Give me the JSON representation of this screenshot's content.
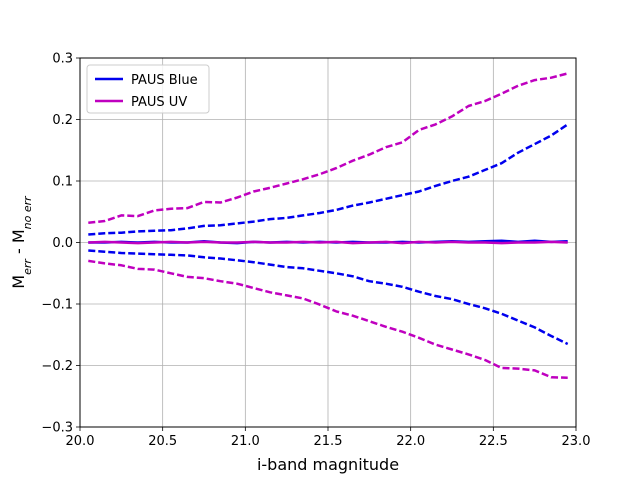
{
  "chart_data": {
    "type": "line",
    "title": "",
    "xlabel": "i-band magnitude",
    "ylabel": {
      "base": "M",
      "sub1": "err",
      "mid": " - M",
      "sub2": "no err"
    },
    "xlim": [
      20.0,
      23.0
    ],
    "ylim": [
      -0.3,
      0.3
    ],
    "xticks": [
      20.0,
      20.5,
      21.0,
      21.5,
      22.0,
      22.5,
      23.0
    ],
    "xtick_labels": [
      "20.0",
      "20.5",
      "21.0",
      "21.5",
      "22.0",
      "22.5",
      "23.0"
    ],
    "yticks": [
      -0.3,
      -0.2,
      -0.1,
      0.0,
      0.1,
      0.2,
      0.3
    ],
    "ytick_labels": [
      "−0.3",
      "−0.2",
      "−0.1",
      "0.0",
      "0.1",
      "0.2",
      "0.3"
    ],
    "grid": true,
    "legend_position": "top-left",
    "legend": [
      {
        "name": "PAUS Blue",
        "color": "#0000ee"
      },
      {
        "name": "PAUS UV",
        "color": "#bf00bf"
      }
    ],
    "x": [
      20.05,
      20.15,
      20.25,
      20.35,
      20.45,
      20.55,
      20.65,
      20.75,
      20.85,
      20.95,
      21.05,
      21.15,
      21.25,
      21.35,
      21.45,
      21.55,
      21.65,
      21.75,
      21.85,
      21.95,
      22.05,
      22.15,
      22.25,
      22.35,
      22.45,
      22.55,
      22.65,
      22.75,
      22.85,
      22.95
    ],
    "series": [
      {
        "name": "PAUS Blue median",
        "color": "#0000ee",
        "style": "solid",
        "values": [
          0.0,
          0.0,
          0.001,
          0.0,
          0.001,
          0.0,
          0.0,
          0.002,
          0.0,
          -0.001,
          0.001,
          0.0,
          0.001,
          0.0,
          0.001,
          0.0,
          0.001,
          0.0,
          0.0,
          0.001,
          0.0,
          0.001,
          0.002,
          0.001,
          0.002,
          0.003,
          0.001,
          0.003,
          0.001,
          0.002
        ]
      },
      {
        "name": "PAUS Blue upper",
        "color": "#0000ee",
        "style": "dashed",
        "values": [
          0.013,
          0.015,
          0.016,
          0.018,
          0.019,
          0.02,
          0.023,
          0.027,
          0.028,
          0.031,
          0.034,
          0.038,
          0.04,
          0.044,
          0.048,
          0.053,
          0.06,
          0.065,
          0.071,
          0.077,
          0.083,
          0.092,
          0.1,
          0.107,
          0.118,
          0.129,
          0.146,
          0.16,
          0.174,
          0.192
        ]
      },
      {
        "name": "PAUS Blue lower",
        "color": "#0000ee",
        "style": "dashed",
        "values": [
          -0.013,
          -0.015,
          -0.017,
          -0.018,
          -0.019,
          -0.02,
          -0.021,
          -0.024,
          -0.026,
          -0.029,
          -0.032,
          -0.036,
          -0.04,
          -0.042,
          -0.046,
          -0.05,
          -0.055,
          -0.063,
          -0.067,
          -0.072,
          -0.08,
          -0.087,
          -0.092,
          -0.1,
          -0.107,
          -0.116,
          -0.127,
          -0.138,
          -0.152,
          -0.165
        ]
      },
      {
        "name": "PAUS UV median",
        "color": "#bf00bf",
        "style": "solid",
        "values": [
          0.0,
          0.001,
          0.0,
          -0.001,
          0.0,
          0.001,
          0.0,
          0.001,
          0.0,
          0.0,
          0.001,
          0.0,
          0.0,
          0.001,
          0.0,
          0.001,
          -0.001,
          0.0,
          0.001,
          -0.001,
          0.001,
          0.0,
          0.001,
          0.0,
          0.0,
          -0.001,
          0.0,
          0.0,
          0.001,
          0.0
        ]
      },
      {
        "name": "PAUS UV upper",
        "color": "#bf00bf",
        "style": "dashed",
        "values": [
          0.032,
          0.035,
          0.044,
          0.043,
          0.052,
          0.055,
          0.056,
          0.066,
          0.065,
          0.073,
          0.083,
          0.089,
          0.096,
          0.103,
          0.111,
          0.121,
          0.133,
          0.143,
          0.155,
          0.163,
          0.183,
          0.192,
          0.205,
          0.222,
          0.23,
          0.242,
          0.255,
          0.264,
          0.268,
          0.275
        ]
      },
      {
        "name": "PAUS UV lower",
        "color": "#bf00bf",
        "style": "dashed",
        "values": [
          -0.03,
          -0.034,
          -0.037,
          -0.043,
          -0.044,
          -0.05,
          -0.056,
          -0.058,
          -0.063,
          -0.067,
          -0.074,
          -0.081,
          -0.086,
          -0.091,
          -0.101,
          -0.112,
          -0.119,
          -0.128,
          -0.137,
          -0.145,
          -0.155,
          -0.166,
          -0.174,
          -0.182,
          -0.191,
          -0.204,
          -0.205,
          -0.208,
          -0.219,
          -0.22
        ]
      }
    ]
  }
}
